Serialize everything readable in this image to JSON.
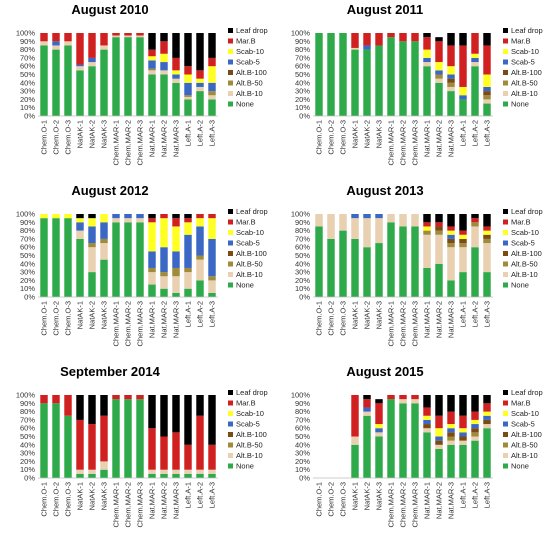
{
  "legend_labels": [
    "Leaf drop",
    "Mar.B",
    "Scab-10",
    "Scab-5",
    "Alt.B-100",
    "Alt.B-50",
    "Alt.B-10",
    "None"
  ],
  "series_colors": {
    "None": "#2eaa4a",
    "Alt.B-10": "#e8d0b0",
    "Alt.B-50": "#a08a3c",
    "Alt.B-100": "#7a4b12",
    "Scab-5": "#3a68c4",
    "Scab-10": "#ffff24",
    "Mar.B": "#d02020",
    "Leaf drop": "#000000"
  },
  "chart_data": [
    {
      "type": "bar",
      "stacked": true,
      "title": "August 2010",
      "categories": [
        "Chem.O-1",
        "Chem.O-2",
        "Chem.O-3",
        "NatAK-1",
        "NatAK-2",
        "NatAK-3",
        "Chem.MAR-1",
        "Chem.MAR-2",
        "Chem.MAR-3",
        "Nat.MAR-1",
        "Nat.MAR-2",
        "Nat.MAR-3",
        "Left.A-1",
        "Left.A-2",
        "Left.A-3"
      ],
      "yticks": [
        "0%",
        "10%",
        "20%",
        "30%",
        "40%",
        "50%",
        "60%",
        "70%",
        "80%",
        "90%",
        "100%"
      ],
      "ylim": [
        0,
        100
      ],
      "legend": "right",
      "series": [
        {
          "name": "None",
          "values": [
            85,
            80,
            85,
            55,
            60,
            80,
            95,
            95,
            95,
            50,
            50,
            40,
            20,
            30,
            20
          ]
        },
        {
          "name": "Alt.B-10",
          "values": [
            5,
            5,
            5,
            5,
            5,
            5,
            2,
            2,
            2,
            5,
            5,
            5,
            3,
            5,
            5
          ]
        },
        {
          "name": "Alt.B-50",
          "values": [
            0,
            0,
            0,
            0,
            0,
            0,
            0,
            0,
            0,
            2,
            0,
            0,
            2,
            0,
            5
          ]
        },
        {
          "name": "Alt.B-100",
          "values": [
            0,
            0,
            0,
            0,
            0,
            0,
            0,
            0,
            0,
            0,
            0,
            0,
            0,
            0,
            0
          ]
        },
        {
          "name": "Scab-5",
          "values": [
            0,
            5,
            0,
            2,
            5,
            0,
            0,
            0,
            0,
            10,
            10,
            5,
            15,
            5,
            10
          ]
        },
        {
          "name": "Scab-10",
          "values": [
            0,
            0,
            0,
            0,
            0,
            0,
            0,
            0,
            0,
            5,
            10,
            5,
            10,
            5,
            20
          ]
        },
        {
          "name": "Mar.B",
          "values": [
            10,
            10,
            10,
            38,
            30,
            15,
            3,
            3,
            3,
            8,
            15,
            15,
            10,
            10,
            10
          ]
        },
        {
          "name": "Leaf drop",
          "values": [
            0,
            0,
            0,
            0,
            0,
            0,
            0,
            0,
            0,
            20,
            10,
            30,
            40,
            45,
            30
          ]
        }
      ]
    },
    {
      "type": "bar",
      "stacked": true,
      "title": "August 2011",
      "categories": [
        "Chem.O-1",
        "Chem.O-2",
        "Chem.O-3",
        "NatAK-1",
        "NatAK-2",
        "NatAK-3",
        "Chem.MAR-1",
        "Chem.MAR-2",
        "Chem.MAR-3",
        "Nat.MAR-1",
        "Nat.MAR-2",
        "Nat.MAR-3",
        "Left.A-1",
        "Left.A-2",
        "Left.A-3"
      ],
      "yticks": [
        "0%",
        "10%",
        "20%",
        "30%",
        "40%",
        "50%",
        "60%",
        "70%",
        "80%",
        "90%",
        "100%"
      ],
      "ylim": [
        0,
        100
      ],
      "legend": "right",
      "series": [
        {
          "name": "None",
          "values": [
            100,
            100,
            100,
            80,
            80,
            85,
            95,
            90,
            90,
            60,
            40,
            30,
            20,
            60,
            15
          ]
        },
        {
          "name": "Alt.B-10",
          "values": [
            0,
            0,
            0,
            2,
            0,
            0,
            0,
            0,
            0,
            5,
            5,
            5,
            0,
            5,
            5
          ]
        },
        {
          "name": "Alt.B-50",
          "values": [
            0,
            0,
            0,
            0,
            0,
            0,
            0,
            0,
            0,
            0,
            5,
            5,
            0,
            0,
            5
          ]
        },
        {
          "name": "Alt.B-100",
          "values": [
            0,
            0,
            0,
            0,
            0,
            0,
            0,
            0,
            0,
            0,
            0,
            5,
            0,
            0,
            5
          ]
        },
        {
          "name": "Scab-5",
          "values": [
            0,
            0,
            0,
            0,
            5,
            0,
            0,
            0,
            0,
            5,
            5,
            5,
            5,
            5,
            5
          ]
        },
        {
          "name": "Scab-10",
          "values": [
            0,
            0,
            0,
            0,
            0,
            0,
            0,
            0,
            0,
            10,
            10,
            10,
            10,
            5,
            15
          ]
        },
        {
          "name": "Mar.B",
          "values": [
            0,
            0,
            0,
            18,
            15,
            15,
            5,
            10,
            10,
            15,
            25,
            25,
            50,
            25,
            35
          ]
        },
        {
          "name": "Leaf drop",
          "values": [
            0,
            0,
            0,
            0,
            0,
            0,
            0,
            0,
            0,
            5,
            5,
            15,
            15,
            0,
            15
          ]
        }
      ]
    },
    {
      "type": "bar",
      "stacked": true,
      "title": "August 2012",
      "categories": [
        "Chem.O-1",
        "Chem.O-2",
        "Chem.O-3",
        "NatAK-1",
        "NatAK-2",
        "NatAK-3",
        "Chem.MAR-1",
        "Chem.MAR-2",
        "Chem.MAR-3",
        "Nat.MAR-1",
        "Nat.MAR-2",
        "Nat.MAR-3",
        "Left.A-1",
        "Left.A-2",
        "Left.A-3"
      ],
      "yticks": [
        "0%",
        "10%",
        "20%",
        "30%",
        "40%",
        "50%",
        "60%",
        "70%",
        "80%",
        "90%",
        "100%"
      ],
      "ylim": [
        0,
        100
      ],
      "legend": "right",
      "series": [
        {
          "name": "None",
          "values": [
            95,
            95,
            95,
            70,
            30,
            45,
            90,
            90,
            90,
            15,
            10,
            5,
            10,
            20,
            5
          ]
        },
        {
          "name": "Alt.B-10",
          "values": [
            0,
            0,
            0,
            10,
            30,
            20,
            5,
            5,
            5,
            15,
            15,
            20,
            20,
            25,
            15
          ]
        },
        {
          "name": "Alt.B-50",
          "values": [
            0,
            0,
            0,
            0,
            5,
            5,
            0,
            0,
            0,
            5,
            5,
            10,
            5,
            5,
            5
          ]
        },
        {
          "name": "Alt.B-100",
          "values": [
            0,
            0,
            0,
            0,
            0,
            0,
            0,
            0,
            0,
            0,
            0,
            0,
            0,
            0,
            0
          ]
        },
        {
          "name": "Scab-5",
          "values": [
            0,
            0,
            0,
            10,
            20,
            20,
            5,
            5,
            5,
            20,
            30,
            20,
            40,
            35,
            45
          ]
        },
        {
          "name": "Scab-10",
          "values": [
            5,
            5,
            5,
            5,
            10,
            10,
            0,
            0,
            0,
            35,
            35,
            30,
            15,
            10,
            25
          ]
        },
        {
          "name": "Mar.B",
          "values": [
            0,
            0,
            0,
            0,
            0,
            0,
            0,
            0,
            0,
            5,
            5,
            10,
            5,
            5,
            5
          ]
        },
        {
          "name": "Leaf drop",
          "values": [
            0,
            0,
            0,
            5,
            5,
            0,
            0,
            0,
            0,
            5,
            0,
            5,
            5,
            0,
            0
          ]
        }
      ]
    },
    {
      "type": "bar",
      "stacked": true,
      "title": "August 2013",
      "categories": [
        "Chem.O-1",
        "Chem.O-2",
        "Chem.O-3",
        "NatAK-1",
        "NatAK-2",
        "NatAK-3",
        "Chem.MAR-1",
        "Chem.MAR-2",
        "Chem.MAR-3",
        "Nat.MAR-1",
        "Nat.MAR-2",
        "Nat.MAR-3",
        "Left.A-1",
        "Left.A-2",
        "Left.A-3"
      ],
      "yticks": [
        "0%",
        "10%",
        "20%",
        "30%",
        "40%",
        "50%",
        "60%",
        "70%",
        "80%",
        "90%",
        "100%"
      ],
      "ylim": [
        0,
        100
      ],
      "legend": "right",
      "series": [
        {
          "name": "None",
          "values": [
            85,
            70,
            80,
            70,
            60,
            65,
            90,
            85,
            85,
            35,
            40,
            20,
            30,
            60,
            30
          ]
        },
        {
          "name": "Alt.B-10",
          "values": [
            15,
            30,
            20,
            25,
            35,
            30,
            10,
            15,
            15,
            40,
            35,
            40,
            30,
            25,
            35
          ]
        },
        {
          "name": "Alt.B-50",
          "values": [
            0,
            0,
            0,
            0,
            0,
            0,
            0,
            0,
            0,
            5,
            5,
            5,
            5,
            5,
            5
          ]
        },
        {
          "name": "Alt.B-100",
          "values": [
            0,
            0,
            0,
            0,
            0,
            0,
            0,
            0,
            0,
            0,
            5,
            5,
            5,
            0,
            5
          ]
        },
        {
          "name": "Scab-5",
          "values": [
            0,
            0,
            0,
            5,
            5,
            5,
            0,
            0,
            0,
            0,
            0,
            5,
            0,
            0,
            0
          ]
        },
        {
          "name": "Scab-10",
          "values": [
            0,
            0,
            0,
            0,
            0,
            0,
            0,
            0,
            0,
            5,
            0,
            5,
            5,
            0,
            5
          ]
        },
        {
          "name": "Mar.B",
          "values": [
            0,
            0,
            0,
            0,
            0,
            0,
            0,
            0,
            0,
            5,
            5,
            5,
            5,
            5,
            5
          ]
        },
        {
          "name": "Leaf drop",
          "values": [
            0,
            0,
            0,
            0,
            0,
            0,
            0,
            0,
            0,
            10,
            10,
            15,
            20,
            5,
            15
          ]
        }
      ]
    },
    {
      "type": "bar",
      "stacked": true,
      "title": "September 2014",
      "categories": [
        "Chem.O-1",
        "Chem.O-2",
        "Chem.O-3",
        "NatAK-1",
        "NatAK-2",
        "NatAK-3",
        "Chem.MAR-1",
        "Chem.MAR-2",
        "Chem.MAR-3",
        "Nat.MAR-1",
        "Nat.MAR-2",
        "Nat.MAR-3",
        "Left.A-1",
        "Left.A-2",
        "Left.A-3"
      ],
      "yticks": [
        "0%",
        "10%",
        "20%",
        "30%",
        "40%",
        "50%",
        "60%",
        "70%",
        "80%",
        "90%",
        "100%"
      ],
      "ylim": [
        0,
        100
      ],
      "legend": "right",
      "series": [
        {
          "name": "None",
          "values": [
            90,
            90,
            75,
            5,
            5,
            10,
            95,
            95,
            95,
            5,
            5,
            5,
            5,
            5,
            5
          ]
        },
        {
          "name": "Alt.B-10",
          "values": [
            0,
            0,
            0,
            5,
            5,
            10,
            0,
            0,
            0,
            5,
            5,
            5,
            5,
            5,
            5
          ]
        },
        {
          "name": "Alt.B-50",
          "values": [
            0,
            0,
            0,
            0,
            0,
            0,
            0,
            0,
            0,
            0,
            0,
            0,
            0,
            0,
            0
          ]
        },
        {
          "name": "Alt.B-100",
          "values": [
            0,
            0,
            0,
            0,
            0,
            0,
            0,
            0,
            0,
            0,
            0,
            0,
            0,
            0,
            0
          ]
        },
        {
          "name": "Scab-5",
          "values": [
            0,
            0,
            0,
            0,
            0,
            0,
            0,
            0,
            0,
            0,
            0,
            0,
            0,
            0,
            0
          ]
        },
        {
          "name": "Scab-10",
          "values": [
            0,
            0,
            0,
            0,
            0,
            0,
            0,
            0,
            0,
            0,
            0,
            0,
            0,
            0,
            0
          ]
        },
        {
          "name": "Mar.B",
          "values": [
            10,
            10,
            25,
            60,
            55,
            55,
            5,
            5,
            5,
            50,
            40,
            45,
            30,
            65,
            30
          ]
        },
        {
          "name": "Leaf drop",
          "values": [
            0,
            0,
            0,
            30,
            35,
            25,
            0,
            0,
            0,
            40,
            50,
            45,
            60,
            25,
            60
          ]
        }
      ]
    },
    {
      "type": "bar",
      "stacked": true,
      "title": "August 2015",
      "categories": [
        "Chem.O-1",
        "Chem.O-2",
        "Chem.O-3",
        "NatAK-1",
        "NatAK-2",
        "NatAK-3",
        "Chem.MAR-1",
        "Chem.MAR-2",
        "Chem.MAR-3",
        "Nat.MAR-1",
        "Nat.MAR-2",
        "Nat.MAR-3",
        "Left.A-1",
        "Left.A-2",
        "Left.A-3"
      ],
      "yticks": [
        "0%",
        "10%",
        "20%",
        "30%",
        "40%",
        "50%",
        "60%",
        "70%",
        "80%",
        "90%",
        "100%"
      ],
      "ylim": [
        0,
        100
      ],
      "legend": "right",
      "series": [
        {
          "name": "None",
          "values": [
            0,
            0,
            0,
            40,
            75,
            50,
            95,
            90,
            90,
            55,
            35,
            40,
            40,
            45,
            60
          ]
        },
        {
          "name": "Alt.B-10",
          "values": [
            0,
            0,
            0,
            10,
            5,
            5,
            0,
            5,
            5,
            5,
            5,
            5,
            5,
            5,
            5
          ]
        },
        {
          "name": "Alt.B-50",
          "values": [
            0,
            0,
            0,
            0,
            0,
            0,
            0,
            0,
            0,
            0,
            0,
            5,
            0,
            5,
            0
          ]
        },
        {
          "name": "Alt.B-100",
          "values": [
            0,
            0,
            0,
            0,
            0,
            0,
            0,
            0,
            0,
            5,
            5,
            5,
            5,
            5,
            5
          ]
        },
        {
          "name": "Scab-5",
          "values": [
            0,
            0,
            0,
            0,
            5,
            5,
            0,
            0,
            0,
            5,
            5,
            5,
            5,
            5,
            5
          ]
        },
        {
          "name": "Scab-10",
          "values": [
            0,
            0,
            0,
            0,
            0,
            5,
            0,
            0,
            0,
            5,
            10,
            5,
            5,
            5,
            5
          ]
        },
        {
          "name": "Mar.B",
          "values": [
            0,
            0,
            0,
            50,
            10,
            25,
            5,
            5,
            5,
            10,
            15,
            15,
            15,
            10,
            10
          ]
        },
        {
          "name": "Leaf drop",
          "values": [
            0,
            0,
            0,
            0,
            5,
            5,
            0,
            0,
            0,
            15,
            25,
            20,
            25,
            20,
            10
          ]
        }
      ]
    }
  ]
}
